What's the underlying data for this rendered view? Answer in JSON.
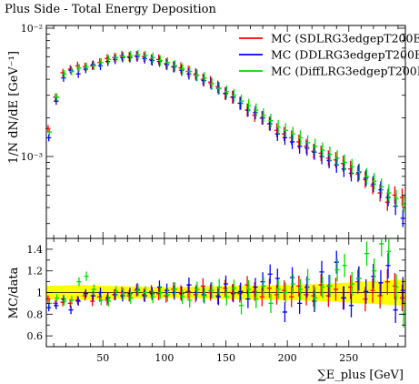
{
  "chart_data": {
    "type": "scatter",
    "title": "Plus Side - Total Energy Deposition",
    "xlabel": "∑E_plus [GeV]",
    "ylabel_main": "1/N dN/dE [GeV⁻¹]",
    "ylabel_ratio": "MC/data",
    "xlim": [
      4,
      296
    ],
    "ylim_main": [
      0.00023,
      0.0105
    ],
    "yscale_main": "log",
    "ylim_ratio": [
      0.5,
      1.5
    ],
    "x_ticks": [
      50,
      100,
      150,
      200,
      250
    ],
    "y_ticks_main": [
      {
        "value": 0.001,
        "label": "10⁻³"
      },
      {
        "value": 0.01,
        "label": "10⁻²"
      }
    ],
    "y_ticks_ratio": [
      0.6,
      0.8,
      1,
      1.2,
      1.4
    ],
    "legend_position": "top-right",
    "series": [
      {
        "name": "MC (SDLRG3edgepT200E",
        "color": "#ff0000",
        "x": [
          6,
          12,
          18,
          24,
          30,
          36,
          42,
          48,
          54,
          60,
          66,
          72,
          78,
          84,
          90,
          96,
          102,
          108,
          114,
          120,
          126,
          132,
          138,
          144,
          150,
          156,
          162,
          168,
          174,
          180,
          186,
          192,
          198,
          204,
          210,
          216,
          222,
          228,
          234,
          240,
          246,
          252,
          258,
          264,
          270,
          276,
          282,
          288,
          294
        ],
        "y": [
          0.00165,
          0.0029,
          0.0045,
          0.0048,
          0.0051,
          0.005,
          0.0051,
          0.0054,
          0.0058,
          0.0059,
          0.0061,
          0.006,
          0.0061,
          0.006,
          0.0057,
          0.0057,
          0.0053,
          0.005,
          0.0049,
          0.0046,
          0.0044,
          0.004,
          0.0038,
          0.0035,
          0.0031,
          0.0029,
          0.0026,
          0.0023,
          0.0021,
          0.002,
          0.0018,
          0.0016,
          0.0015,
          0.0014,
          0.0013,
          0.0012,
          0.0011,
          0.00106,
          0.00097,
          0.00094,
          0.00088,
          0.0008,
          0.00073,
          0.00066,
          0.00059,
          0.00052,
          0.00044,
          0.0005,
          0.00048
        ],
        "ratio": [
          0.94,
          0.9,
          0.91,
          0.9,
          0.93,
          0.97,
          0.92,
          0.96,
          0.93,
          0.98,
          1.0,
          0.97,
          1.02,
          0.98,
          1.01,
          0.99,
          0.97,
          1.03,
          1.0,
          1.01,
          0.98,
          1.06,
          1.0,
          0.97,
          1.04,
          1.0,
          0.99,
          1.07,
          1.01,
          0.96,
          1.04,
          0.98,
          1.02,
          0.96,
          1.06,
          0.98,
          0.97,
          1.07,
          0.97,
          1.03,
          0.95,
          1.05,
          1.1,
          0.94,
          1.02,
          0.97,
          1.1,
          1.06,
          0.95
        ]
      },
      {
        "name": "MC (DDLRG3edgepT200E",
        "color": "#0000ff",
        "x": [
          6,
          12,
          18,
          24,
          30,
          36,
          42,
          48,
          54,
          60,
          66,
          72,
          78,
          84,
          90,
          96,
          102,
          108,
          114,
          120,
          126,
          132,
          138,
          144,
          150,
          156,
          162,
          168,
          174,
          180,
          186,
          192,
          198,
          204,
          210,
          216,
          222,
          228,
          234,
          240,
          246,
          252,
          258,
          264,
          270,
          276,
          282,
          288,
          294
        ],
        "y": [
          0.0014,
          0.0027,
          0.0041,
          0.0047,
          0.0044,
          0.0048,
          0.0052,
          0.0051,
          0.0055,
          0.0057,
          0.0059,
          0.0059,
          0.006,
          0.0058,
          0.0056,
          0.0055,
          0.0052,
          0.005,
          0.0047,
          0.0044,
          0.0043,
          0.0039,
          0.0037,
          0.0034,
          0.0031,
          0.0029,
          0.0026,
          0.0023,
          0.0022,
          0.002,
          0.0018,
          0.0015,
          0.0014,
          0.0013,
          0.0012,
          0.00116,
          0.00108,
          0.001,
          0.00093,
          0.00086,
          0.0008,
          0.00074,
          0.00075,
          0.00068,
          0.00061,
          0.00055,
          0.00048,
          0.00041,
          0.00033
        ],
        "ratio": [
          0.86,
          0.88,
          0.94,
          0.84,
          0.92,
          0.99,
          0.97,
          1.0,
          0.95,
          0.98,
          0.97,
          0.99,
          1.03,
          0.97,
          0.99,
          1.05,
          1.02,
          1.0,
          0.99,
          1.07,
          1.0,
          0.98,
          1.02,
          0.96,
          1.08,
          0.99,
          1.01,
          0.94,
          1.05,
          1.1,
          1.17,
          1.13,
          0.82,
          1.14,
          0.9,
          1.05,
          0.92,
          1.19,
          1.06,
          1.28,
          0.95,
          0.88,
          1.13,
          1.01,
          1.15,
          1.09,
          1.25,
          0.84,
          1.02
        ]
      },
      {
        "name": "MC (DiffLRG3edgepT200E",
        "color": "#00dd00",
        "x": [
          6,
          12,
          18,
          24,
          30,
          36,
          42,
          48,
          54,
          60,
          66,
          72,
          78,
          84,
          90,
          96,
          102,
          108,
          114,
          120,
          126,
          132,
          138,
          144,
          150,
          156,
          162,
          168,
          174,
          180,
          186,
          192,
          198,
          204,
          210,
          216,
          222,
          228,
          234,
          240,
          246,
          252,
          258,
          264,
          270,
          276,
          282,
          288,
          294
        ],
        "y": [
          0.00155,
          0.0029,
          0.0044,
          0.0046,
          0.0049,
          0.005,
          0.0051,
          0.0054,
          0.0057,
          0.0059,
          0.006,
          0.0061,
          0.0062,
          0.0061,
          0.0059,
          0.0056,
          0.0054,
          0.0051,
          0.0048,
          0.0046,
          0.0043,
          0.0041,
          0.0037,
          0.0034,
          0.0032,
          0.003,
          0.0027,
          0.0025,
          0.0023,
          0.0021,
          0.0019,
          0.0017,
          0.0016,
          0.0015,
          0.0014,
          0.00128,
          0.0012,
          0.00112,
          0.00104,
          0.00097,
          0.0009,
          0.00083,
          0.00076,
          0.0007,
          0.00064,
          0.00058,
          0.00052,
          0.00047,
          0.00043
        ],
        "ratio": [
          0.9,
          0.95,
          0.92,
          0.93,
          1.1,
          1.15,
          1.03,
          0.93,
          0.92,
          1.01,
          0.99,
          0.95,
          1.02,
          1.0,
          0.96,
          1.0,
          0.98,
          1.03,
          0.96,
          0.93,
          1.03,
          0.97,
          1.02,
          1.05,
          0.96,
          1.04,
          0.88,
          1.03,
          0.94,
          1.06,
          0.9,
          1.03,
          1.0,
          1.08,
          1.03,
          1.12,
          0.95,
          1.05,
          1.06,
          1.21,
          1.25,
          1.08,
          1.13,
          1.36,
          1.2,
          1.45,
          1.38,
          1.05,
          0.8
        ]
      }
    ],
    "mc_uncertainty_band": {
      "color": "#ffff00",
      "x": [
        4,
        30,
        60,
        100,
        150,
        200,
        230,
        260,
        296
      ],
      "lower": [
        0.94,
        0.93,
        0.94,
        0.95,
        0.94,
        0.93,
        0.92,
        0.9,
        0.88
      ],
      "upper": [
        1.06,
        1.07,
        1.06,
        1.05,
        1.06,
        1.07,
        1.08,
        1.1,
        1.12
      ]
    }
  }
}
